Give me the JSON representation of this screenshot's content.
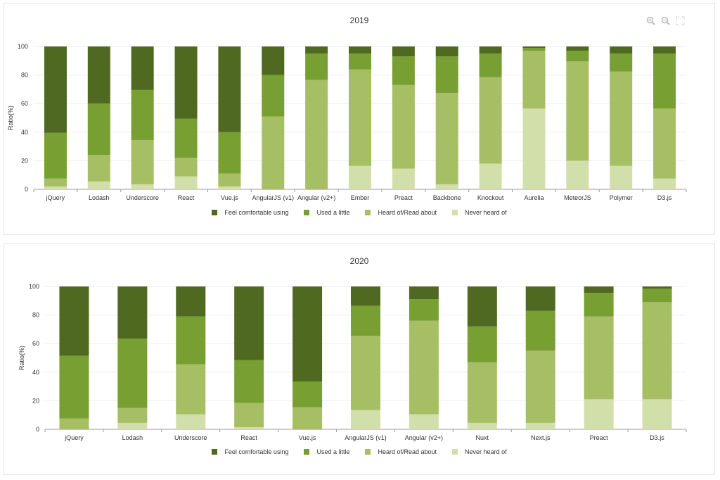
{
  "colors": {
    "comfortable": "#4f6a20",
    "used_little": "#789f32",
    "heard_of": "#a6bf64",
    "never_heard": "#d3dfaa",
    "grid": "#eeeeee",
    "axis": "#999999"
  },
  "toolbar_icons": [
    "zoom-in-icon",
    "zoom-out-icon",
    "fullscreen-icon"
  ],
  "chart_data": [
    {
      "type": "bar",
      "stacked": true,
      "title": "2019",
      "ylabel": "Ratio(%)",
      "ylim": [
        0,
        100
      ],
      "yticks": [
        0,
        20,
        40,
        60,
        80,
        100
      ],
      "legend_position": "bottom",
      "categories": [
        "jQuery",
        "Lodash",
        "Underscore",
        "React",
        "Vue.js",
        "AngularJS (v1)",
        "Angular (v2+)",
        "Ember",
        "Preact",
        "Backbone",
        "Knockout",
        "Aurelia",
        "MeteorJS",
        "Polymer",
        "D3.js"
      ],
      "series": [
        {
          "name": "Never heard of",
          "values": [
            2,
            5.5,
            3.5,
            9,
            2,
            0,
            0,
            16.5,
            14.5,
            3.5,
            18,
            56.5,
            20,
            16.5,
            7.5
          ]
        },
        {
          "name": "Heard of/Read about",
          "values": [
            5.5,
            18.5,
            31,
            13,
            9,
            51,
            76.5,
            67.5,
            58.5,
            64,
            60.5,
            40.5,
            69.5,
            66,
            49
          ]
        },
        {
          "name": "Used a little",
          "values": [
            32,
            36,
            35,
            27.5,
            29,
            29,
            18.5,
            11,
            20,
            25.5,
            16.5,
            2,
            7.5,
            12.5,
            38.5
          ]
        },
        {
          "name": "Feel comfortable using",
          "values": [
            60.5,
            40,
            30.5,
            50.5,
            60,
            20,
            5,
            5,
            7,
            7,
            5,
            1,
            3,
            5,
            5
          ]
        }
      ]
    },
    {
      "type": "bar",
      "stacked": true,
      "title": "2020",
      "ylabel": "Ratio(%)",
      "ylim": [
        0,
        100
      ],
      "yticks": [
        0,
        20,
        40,
        60,
        80,
        100
      ],
      "legend_position": "bottom",
      "categories": [
        "jQuery",
        "Lodash",
        "Underscore",
        "React",
        "Vue.js",
        "AngularJS (v1)",
        "Angular (v2+)",
        "Nuxt",
        "Next.js",
        "Preact",
        "D3.js"
      ],
      "series": [
        {
          "name": "Never heard of",
          "values": [
            0,
            4.5,
            10.5,
            1.5,
            0,
            13.5,
            10.5,
            4.5,
            4.5,
            21,
            21
          ]
        },
        {
          "name": "Heard of/Read about",
          "values": [
            7.5,
            10.5,
            35,
            17,
            15.5,
            52,
            65.5,
            42.5,
            50.5,
            58,
            68
          ]
        },
        {
          "name": "Used a little",
          "values": [
            44,
            48.5,
            33.5,
            30,
            18,
            21,
            15,
            25,
            28,
            16.5,
            9.5
          ]
        },
        {
          "name": "Feel comfortable using",
          "values": [
            48.5,
            36.5,
            21,
            51.5,
            66.5,
            13.5,
            9,
            28,
            17,
            4.5,
            1.5
          ]
        }
      ]
    }
  ]
}
